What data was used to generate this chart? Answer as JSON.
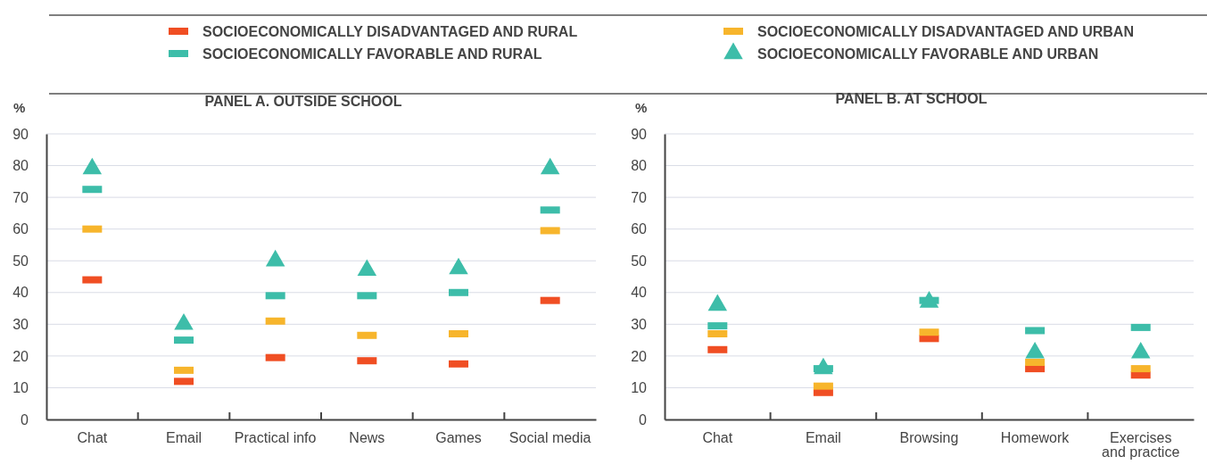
{
  "chart_data": [
    {
      "type": "scatter",
      "title": "PANEL A. OUTSIDE SCHOOL",
      "ylabel": "%",
      "categories": [
        "Chat",
        "Email",
        "Practical info",
        "News",
        "Games",
        "Social media"
      ],
      "ylim": [
        0,
        90
      ],
      "yticks": [
        0,
        10,
        20,
        30,
        40,
        50,
        60,
        70,
        80,
        90
      ],
      "grid": "y",
      "legend": "top",
      "series": [
        {
          "name": "SOCIOECONOMICALLY DISADVANTAGED AND RURAL",
          "color": "#f04e23",
          "marker": "square",
          "values": [
            44,
            12,
            19.5,
            18.5,
            17.5,
            37.5
          ]
        },
        {
          "name": "SOCIOECONOMICALLY DISADVANTAGED AND URBAN",
          "color": "#f7b52c",
          "marker": "square",
          "values": [
            60,
            15.5,
            31,
            26.5,
            27,
            59.5
          ]
        },
        {
          "name": "SOCIOECONOMICALLY FAVORABLE AND RURAL",
          "color": "#3dbda9",
          "marker": "square",
          "values": [
            72.5,
            25,
            39,
            39,
            40,
            66
          ]
        },
        {
          "name": "SOCIOECONOMICALLY FAVORABLE AND URBAN",
          "color": "#3dbda9",
          "marker": "triangle",
          "values": [
            79,
            30,
            50,
            47,
            47.5,
            79
          ]
        }
      ]
    },
    {
      "type": "scatter",
      "title": "PANEL B. AT SCHOOL",
      "ylabel": "%",
      "categories": [
        "Chat",
        "Email",
        "Browsing",
        "Homework",
        "Exercises and practice"
      ],
      "ylim": [
        0,
        90
      ],
      "yticks": [
        0,
        10,
        20,
        30,
        40,
        50,
        60,
        70,
        80,
        90
      ],
      "grid": "y",
      "series": [
        {
          "color": "#f04e23",
          "marker": "square",
          "values": [
            22,
            8.5,
            25.5,
            16,
            14
          ]
        },
        {
          "color": "#f7b52c",
          "marker": "square",
          "values": [
            27,
            10.5,
            27.5,
            18,
            16
          ]
        },
        {
          "color": "#3dbda9",
          "marker": "square",
          "values": [
            29.5,
            16,
            37.5,
            28,
            29
          ]
        },
        {
          "color": "#3dbda9",
          "marker": "triangle",
          "values": [
            36,
            16,
            37,
            21,
            21
          ]
        }
      ]
    }
  ]
}
